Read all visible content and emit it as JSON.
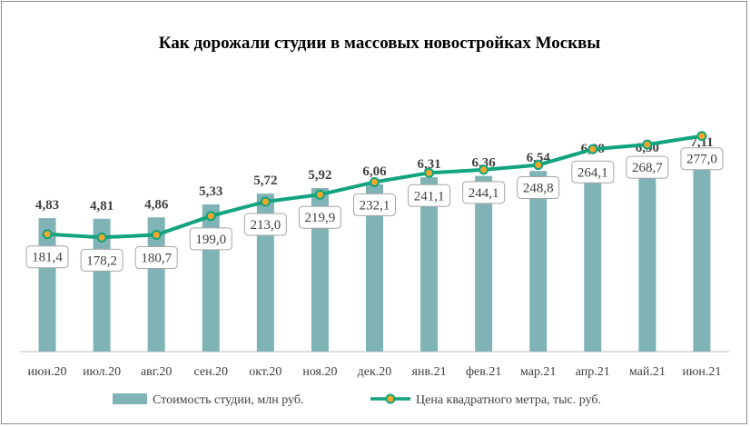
{
  "chart_data": {
    "type": "bar",
    "title": "Как дорожали студии в массовых новостройках  Москвы",
    "categories": [
      "июн.20",
      "июл.20",
      "авг.20",
      "сен.20",
      "окт.20",
      "ноя.20",
      "дек.20",
      "янв.21",
      "фев.21",
      "мар.21",
      "апр.21",
      "май.21",
      "июн.21"
    ],
    "series": [
      {
        "name": "Стоимость студии, млн руб.",
        "type": "bar",
        "color": "#7fb3b5",
        "values": [
          4.83,
          4.81,
          4.86,
          5.33,
          5.72,
          5.92,
          6.06,
          6.31,
          6.36,
          6.54,
          6.88,
          6.9,
          7.11
        ],
        "labels": [
          "4,83",
          "4,81",
          "4,86",
          "5,33",
          "5,72",
          "5,92",
          "6,06",
          "6,31",
          "6,36",
          "6,54",
          "6,88",
          "6,90",
          "7,11"
        ]
      },
      {
        "name": "Цена квадратного метра, тыс. руб.",
        "type": "line",
        "color": "#12a37f",
        "marker_color": "#f2a72b",
        "values": [
          181.4,
          178.2,
          180.7,
          199.0,
          213.0,
          219.9,
          232.1,
          241.1,
          244.1,
          248.8,
          264.1,
          268.7,
          277.0
        ],
        "labels": [
          "181,4",
          "178,2",
          "180,7",
          "199,0",
          "213,0",
          "219,9",
          "232,1",
          "241,1",
          "244,1",
          "248,8",
          "264,1",
          "268,7",
          "277,0"
        ]
      }
    ],
    "legend_position": "bottom",
    "grid": false
  }
}
